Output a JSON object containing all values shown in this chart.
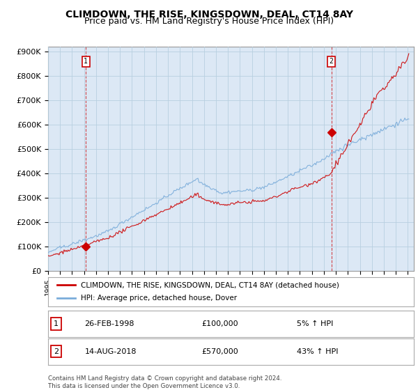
{
  "title": "CLIMDOWN, THE RISE, KINGSDOWN, DEAL, CT14 8AY",
  "subtitle": "Price paid vs. HM Land Registry's House Price Index (HPI)",
  "ylabel_ticks": [
    "£0",
    "£100K",
    "£200K",
    "£300K",
    "£400K",
    "£500K",
    "£600K",
    "£700K",
    "£800K",
    "£900K"
  ],
  "ytick_values": [
    0,
    100000,
    200000,
    300000,
    400000,
    500000,
    600000,
    700000,
    800000,
    900000
  ],
  "ylim": [
    0,
    920000
  ],
  "xlim_start": 1995.0,
  "xlim_end": 2025.5,
  "sale1_x": 1998.15,
  "sale1_y": 100000,
  "sale2_x": 2018.62,
  "sale2_y": 570000,
  "legend_line1_label": "CLIMDOWN, THE RISE, KINGSDOWN, DEAL, CT14 8AY (detached house)",
  "legend_line2_label": "HPI: Average price, detached house, Dover",
  "table_row1": [
    "1",
    "26-FEB-1998",
    "£100,000",
    "5% ↑ HPI"
  ],
  "table_row2": [
    "2",
    "14-AUG-2018",
    "£570,000",
    "43% ↑ HPI"
  ],
  "footer": "Contains HM Land Registry data © Crown copyright and database right 2024.\nThis data is licensed under the Open Government Licence v3.0.",
  "line_color_red": "#cc0000",
  "line_color_blue": "#7aacda",
  "plot_bg_color": "#dce8f5",
  "background_color": "#ffffff",
  "grid_color": "#b8cfe0",
  "title_fontsize": 10,
  "subtitle_fontsize": 9,
  "tick_label_fontsize": 8
}
